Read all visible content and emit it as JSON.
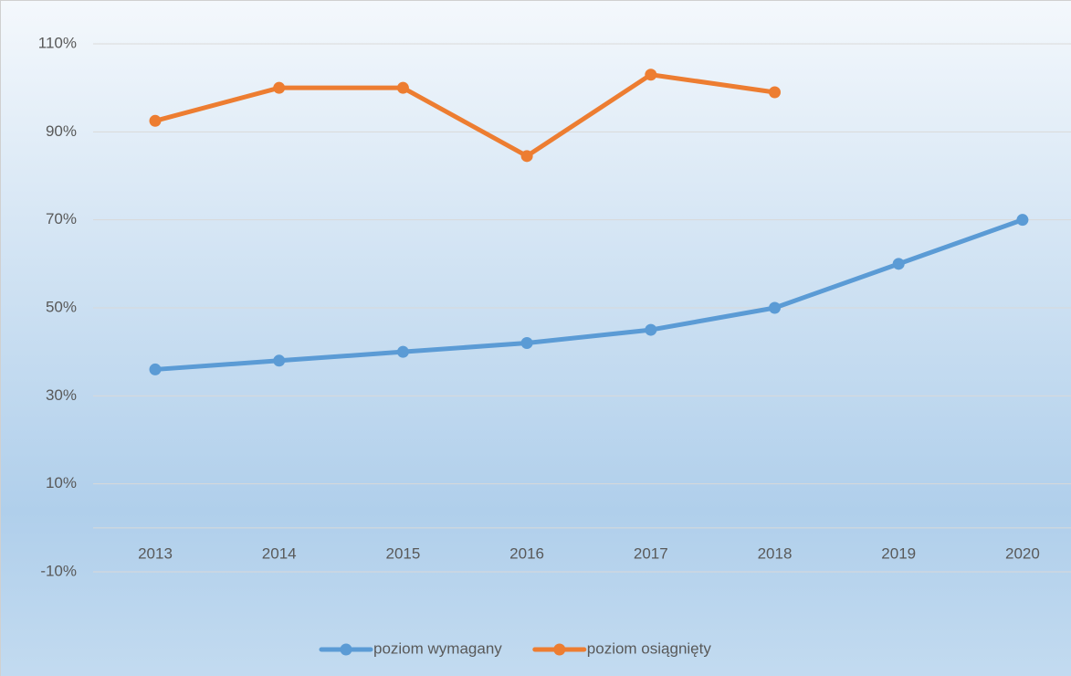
{
  "chart_data": {
    "type": "line",
    "categories": [
      "2013",
      "2014",
      "2015",
      "2016",
      "2017",
      "2018",
      "2019",
      "2020"
    ],
    "series": [
      {
        "name": "poziom wymagany",
        "color": "#5b9bd5",
        "values": [
          36,
          38,
          40,
          42,
          45,
          50,
          60,
          70
        ]
      },
      {
        "name": "poziom osiągnięty",
        "color": "#ed7d31",
        "values": [
          92.5,
          100,
          100,
          84.5,
          103,
          99,
          null,
          null
        ]
      }
    ],
    "ylim": [
      -10,
      110
    ],
    "yticks": [
      {
        "value": -10,
        "label": "-10%"
      },
      {
        "value": 10,
        "label": "10%"
      },
      {
        "value": 30,
        "label": "30%"
      },
      {
        "value": 50,
        "label": "50%"
      },
      {
        "value": 70,
        "label": "70%"
      },
      {
        "value": 90,
        "label": "90%"
      },
      {
        "value": 110,
        "label": "110%"
      }
    ],
    "grid": true,
    "legend": "bottom"
  }
}
